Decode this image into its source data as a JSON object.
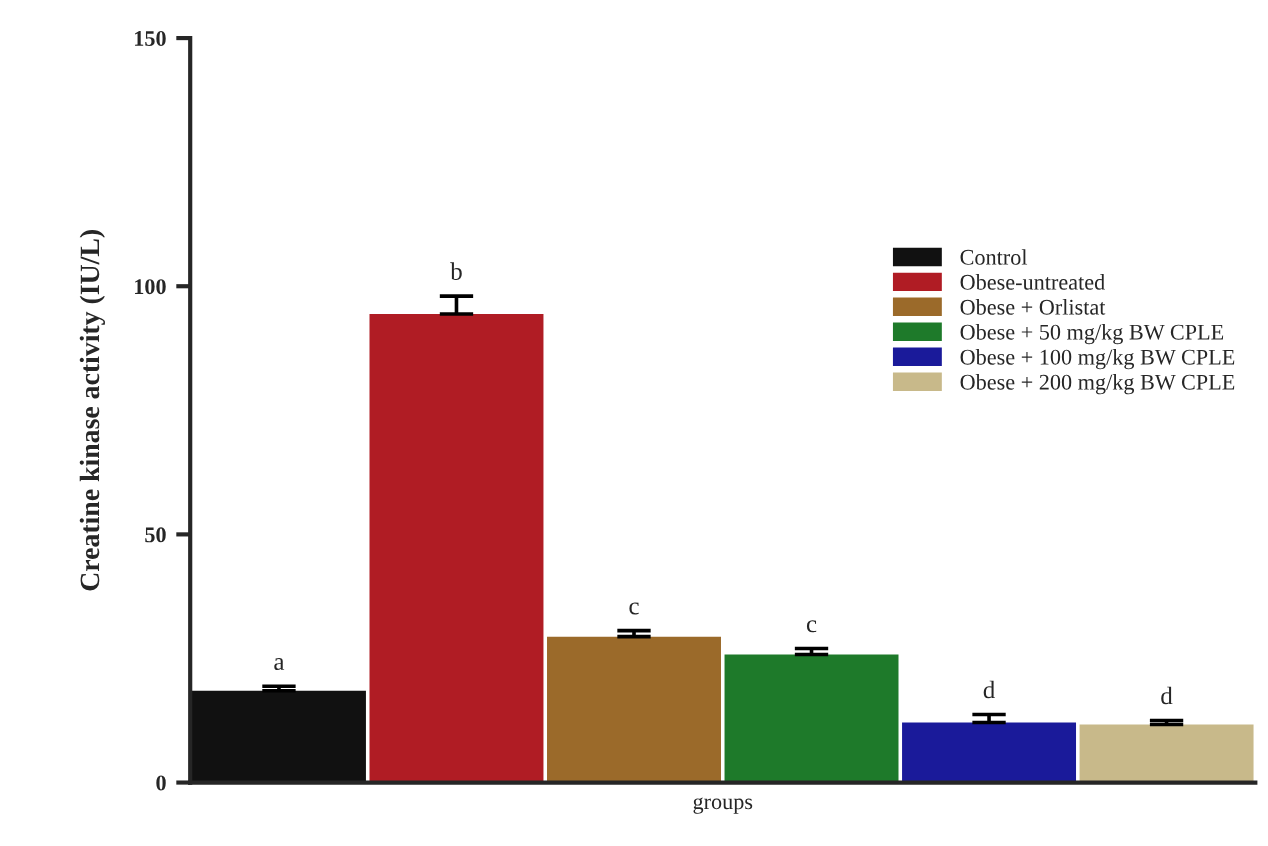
{
  "chart_data": {
    "type": "bar",
    "categories": [
      null,
      null,
      null,
      null,
      null,
      null
    ],
    "series": [
      {
        "name": "Control",
        "color": "#111111",
        "values": [
          18.5,
          null,
          null,
          null,
          null,
          null
        ],
        "errors": [
          [
            18.5,
            19.4
          ],
          null,
          null,
          null,
          null,
          null
        ]
      },
      {
        "name": "Obese-untreated",
        "color": "#b01c24",
        "values": [
          null,
          94.4,
          null,
          null,
          null,
          null
        ],
        "errors": [
          null,
          [
            94.4,
            98
          ],
          null,
          null,
          null,
          null
        ]
      },
      {
        "name": "Obese + Orlistat",
        "color": "#9b6a2a",
        "values": [
          null,
          null,
          29.4,
          null,
          null,
          null
        ],
        "errors": [
          null,
          null,
          [
            29.4,
            30.6
          ],
          null,
          null,
          null
        ]
      },
      {
        "name": "Obese + 50 mg/kg BW CPLE",
        "color": "#1e7a2a",
        "values": [
          null,
          null,
          null,
          25.8,
          null,
          null
        ],
        "errors": [
          null,
          null,
          null,
          [
            25.8,
            27
          ],
          null,
          null
        ]
      },
      {
        "name": "Obese + 100 mg/kg BW CPLE",
        "color": "#1a1a9a",
        "values": [
          null,
          null,
          null,
          null,
          12.1,
          null
        ],
        "errors": [
          null,
          null,
          null,
          null,
          [
            12.1,
            13.7
          ],
          null
        ]
      },
      {
        "name": "Obese + 200 mg/kg BW CPLE",
        "color": "#c8b98a",
        "values": [
          null,
          null,
          null,
          null,
          null,
          11.7
        ],
        "errors": [
          null,
          null,
          null,
          null,
          null,
          [
            11.7,
            12.5
          ]
        ]
      }
    ],
    "xlabel": "groups",
    "ylabel": "Creatine kinase activity (IU/L)",
    "ylim": [
      0,
      150
    ],
    "yticks": [
      0,
      50,
      100,
      150
    ],
    "tick_labels": "y",
    "legend": "right",
    "grid": false,
    "annotations": [
      {
        "text": "a",
        "y": 19.4
      },
      {
        "text": "b",
        "y": 98
      },
      {
        "text": "c",
        "y": 30.6
      },
      {
        "text": "c",
        "y": 27
      },
      {
        "text": "d",
        "y": 13.7
      },
      {
        "text": "d",
        "y": 12.5
      }
    ]
  }
}
